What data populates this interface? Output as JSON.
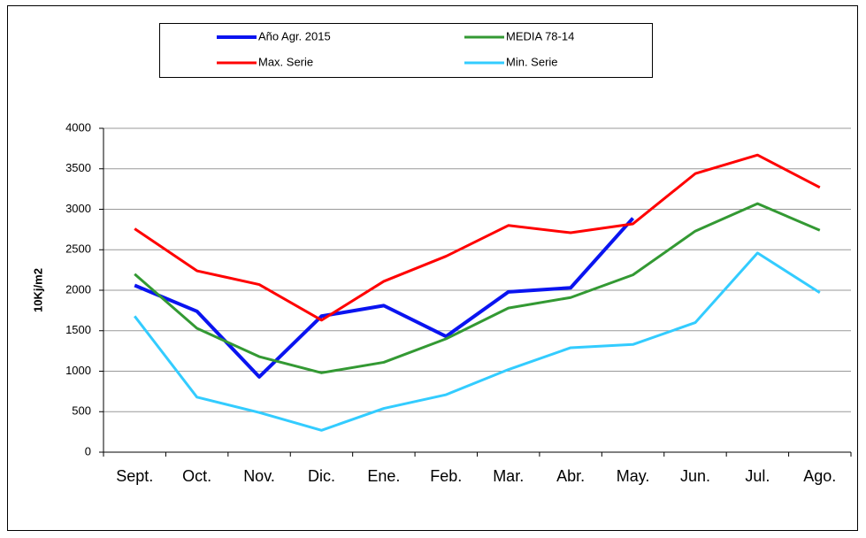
{
  "chart_data": {
    "type": "line",
    "y_label": "10Kj/m2",
    "categories": [
      "Sept.",
      "Oct.",
      "Nov.",
      "Dic.",
      "Ene.",
      "Feb.",
      "Mar.",
      "Abr.",
      "May.",
      "Jun.",
      "Jul.",
      "Ago."
    ],
    "series": [
      {
        "name": "Año Agr. 2015",
        "color": "#0a14f0",
        "values": [
          2060,
          1740,
          930,
          1680,
          1810,
          1430,
          1980,
          2030,
          2890,
          null,
          null,
          null
        ]
      },
      {
        "name": "MEDIA 78-14",
        "color": "#339933",
        "values": [
          2200,
          1530,
          1180,
          980,
          1110,
          1400,
          1780,
          1910,
          2190,
          2730,
          3070,
          2740
        ]
      },
      {
        "name": "Max. Serie",
        "color": "#ff0000",
        "values": [
          2760,
          2240,
          2070,
          1630,
          2110,
          2420,
          2800,
          2710,
          2820,
          3440,
          3670,
          3270
        ]
      },
      {
        "name": "Min. Serie",
        "color": "#33ccff",
        "values": [
          1680,
          680,
          490,
          270,
          540,
          710,
          1020,
          1290,
          1330,
          1600,
          2460,
          1970
        ]
      }
    ],
    "ylim": [
      0,
      4000
    ],
    "yticks": [
      0,
      500,
      1000,
      1500,
      2000,
      2500,
      3000,
      3500,
      4000
    ],
    "grid": true
  }
}
